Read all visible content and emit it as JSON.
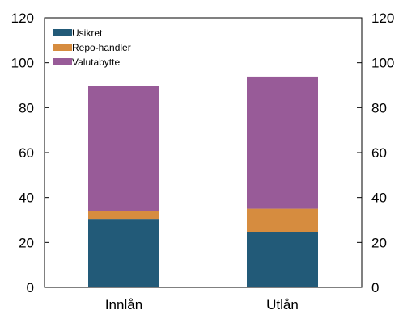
{
  "chart_data": {
    "type": "bar",
    "stacked": true,
    "categories": [
      "Innlån",
      "Utlån"
    ],
    "series": [
      {
        "name": "Usikret",
        "values": [
          30.5,
          24.5
        ],
        "color": "#225A78"
      },
      {
        "name": "Repo-handler",
        "values": [
          3.5,
          10.5
        ],
        "color": "#D68C3F"
      },
      {
        "name": "Valutabytte",
        "values": [
          55.5,
          58.8
        ],
        "color": "#985B98"
      }
    ],
    "ylim": [
      0,
      120
    ],
    "yticks": [
      "0",
      "20",
      "40",
      "60",
      "80",
      "100",
      "120"
    ],
    "secondary_yticks": [
      "0",
      "20",
      "40",
      "60",
      "80",
      "100",
      "120"
    ],
    "grid": false,
    "legend_position": "top-left"
  }
}
